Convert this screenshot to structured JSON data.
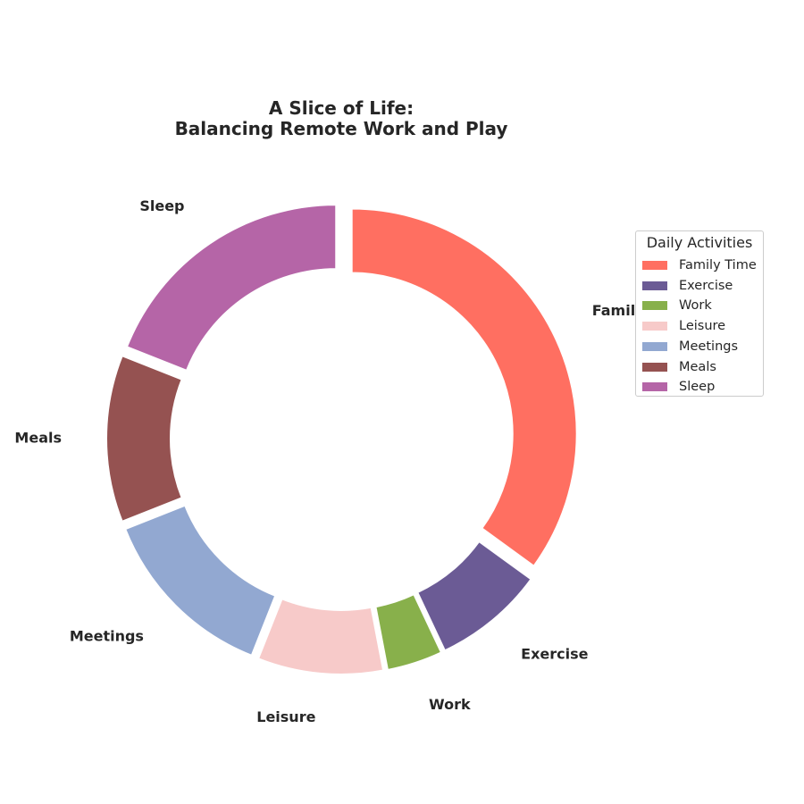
{
  "chart_data": {
    "type": "pie",
    "variant": "donut",
    "title": "A Slice of Life:\nBalancing Remote Work and Play",
    "unit": "percent",
    "start_angle_deg": 90,
    "direction": "clockwise",
    "slices": [
      {
        "label": "Family Time",
        "value": 35,
        "color": "#FF6F61"
      },
      {
        "label": "Exercise",
        "value": 8,
        "color": "#6B5B95"
      },
      {
        "label": "Work",
        "value": 4,
        "color": "#88B04B"
      },
      {
        "label": "Leisure",
        "value": 9,
        "color": "#F7CAC9"
      },
      {
        "label": "Meetings",
        "value": 13,
        "color": "#92A8D1"
      },
      {
        "label": "Meals",
        "value": 12,
        "color": "#955251"
      },
      {
        "label": "Sleep",
        "value": 19,
        "color": "#B565A7"
      }
    ],
    "legend": {
      "title": "Daily Activities",
      "placement": "right"
    }
  }
}
